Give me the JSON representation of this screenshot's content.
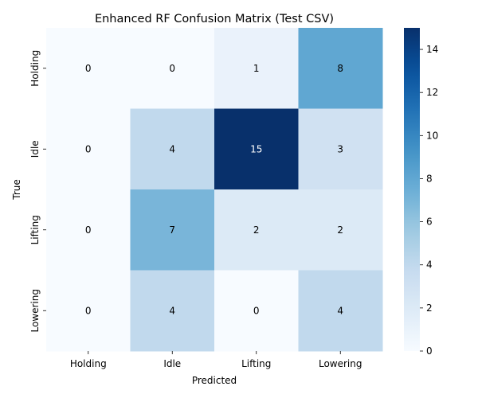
{
  "chart_data": {
    "type": "heatmap",
    "title": "Enhanced RF Confusion Matrix (Test CSV)",
    "xlabel": "Predicted",
    "ylabel": "True",
    "x_categories": [
      "Holding",
      "Idle",
      "Lifting",
      "Lowering"
    ],
    "y_categories": [
      "Holding",
      "Idle",
      "Lifting",
      "Lowering"
    ],
    "values": [
      [
        0,
        0,
        1,
        8
      ],
      [
        0,
        4,
        15,
        3
      ],
      [
        0,
        7,
        2,
        2
      ],
      [
        0,
        4,
        0,
        4
      ]
    ],
    "colorbar": {
      "range": [
        0,
        15
      ],
      "ticks": [
        0,
        2,
        4,
        6,
        8,
        10,
        12,
        14
      ],
      "colormap": "Blues"
    },
    "colors": {
      "low": "#f7fbff",
      "high": "#08306b",
      "text_dark": "#000000",
      "text_light": "#ffffff"
    }
  }
}
